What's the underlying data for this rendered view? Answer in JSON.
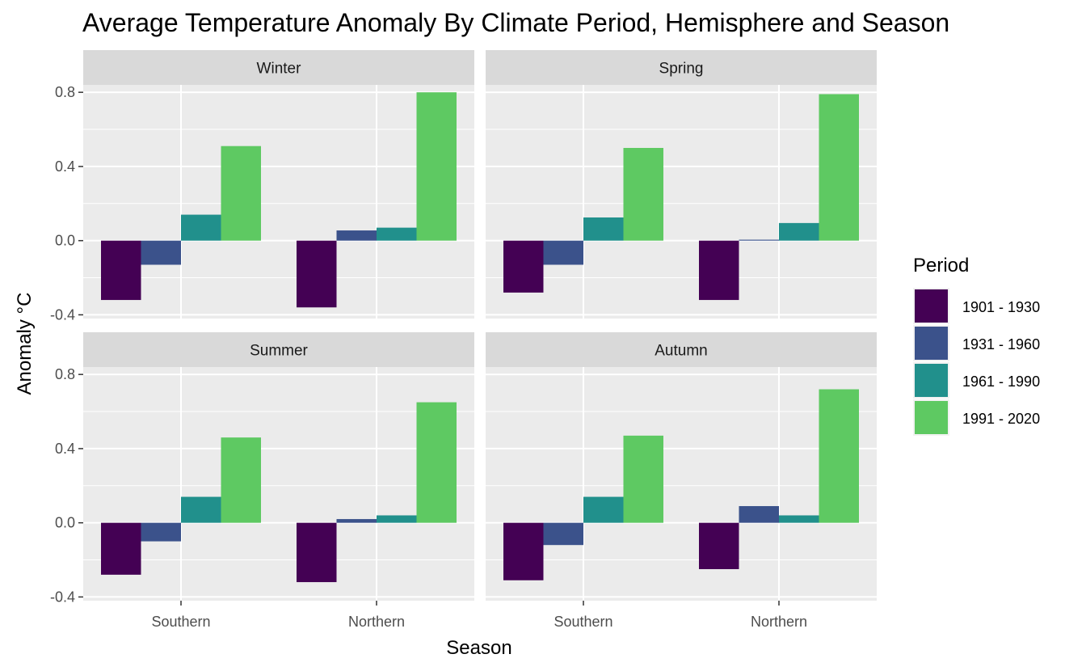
{
  "chart_data": {
    "type": "bar",
    "title": "Average Temperature Anomaly By Climate Period, Hemisphere and Season",
    "xlabel": "Season",
    "ylabel": "Anomaly °C",
    "categories": [
      "Southern",
      "Northern"
    ],
    "ylim": [
      -0.42,
      0.84
    ],
    "yticks": [
      -0.4,
      0.0,
      0.4,
      0.8
    ],
    "ytick_labels": [
      "-0.4",
      "0.0",
      "0.4",
      "0.8"
    ],
    "grid": true,
    "legend": {
      "title": "Period",
      "position": "right"
    },
    "series_colors": [
      "#440154",
      "#3b528b",
      "#21908c",
      "#5ec962"
    ],
    "periods": [
      "1901 - 1930",
      "1931 - 1960",
      "1961 - 1990",
      "1991 - 2020"
    ],
    "facets": [
      {
        "label": "Winter",
        "series": [
          {
            "name": "1901 - 1930",
            "values": [
              -0.32,
              -0.36
            ]
          },
          {
            "name": "1931 - 1960",
            "values": [
              -0.13,
              0.055
            ]
          },
          {
            "name": "1961 - 1990",
            "values": [
              0.14,
              0.07
            ]
          },
          {
            "name": "1991 - 2020",
            "values": [
              0.51,
              0.8
            ]
          }
        ]
      },
      {
        "label": "Spring",
        "series": [
          {
            "name": "1901 - 1930",
            "values": [
              -0.28,
              -0.32
            ]
          },
          {
            "name": "1931 - 1960",
            "values": [
              -0.13,
              0.005
            ]
          },
          {
            "name": "1961 - 1990",
            "values": [
              0.125,
              0.095
            ]
          },
          {
            "name": "1991 - 2020",
            "values": [
              0.5,
              0.79
            ]
          }
        ]
      },
      {
        "label": "Summer",
        "series": [
          {
            "name": "1901 - 1930",
            "values": [
              -0.28,
              -0.32
            ]
          },
          {
            "name": "1931 - 1960",
            "values": [
              -0.1,
              0.02
            ]
          },
          {
            "name": "1961 - 1990",
            "values": [
              0.14,
              0.04
            ]
          },
          {
            "name": "1991 - 2020",
            "values": [
              0.46,
              0.65
            ]
          }
        ]
      },
      {
        "label": "Autumn",
        "series": [
          {
            "name": "1901 - 1930",
            "values": [
              -0.31,
              -0.25
            ]
          },
          {
            "name": "1931 - 1960",
            "values": [
              -0.12,
              0.09
            ]
          },
          {
            "name": "1961 - 1990",
            "values": [
              0.14,
              0.04
            ]
          },
          {
            "name": "1991 - 2020",
            "values": [
              0.47,
              0.72
            ]
          }
        ]
      }
    ]
  }
}
